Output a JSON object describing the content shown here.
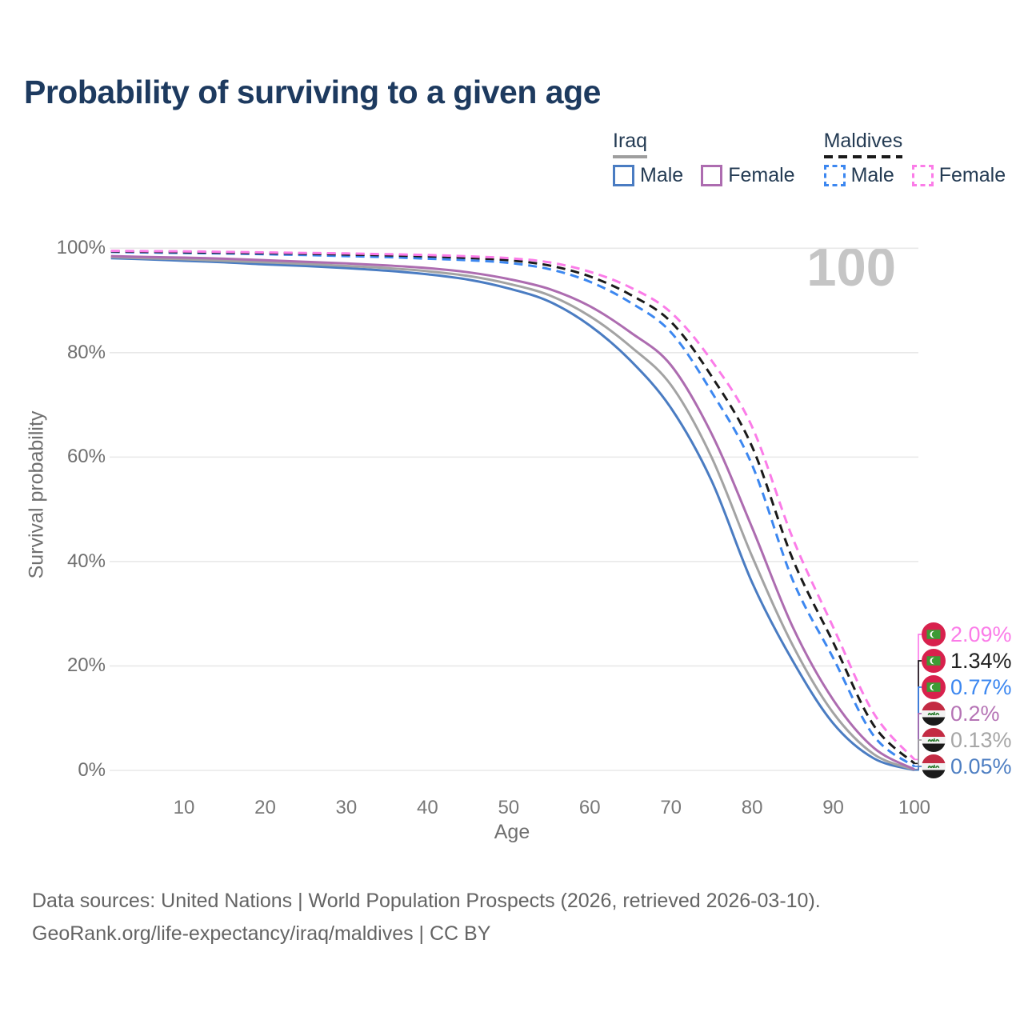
{
  "title": "Probability of surviving to a given age",
  "watermark": "100",
  "legend": {
    "groups": [
      {
        "name": "Iraq",
        "line_style": "solid",
        "line_color": "#9e9e9e",
        "items": [
          {
            "label": "Male",
            "color": "#4a7cc2",
            "dashed": false
          },
          {
            "label": "Female",
            "color": "#ad6cb0",
            "dashed": false
          }
        ]
      },
      {
        "name": "Maldives",
        "line_style": "dashed",
        "line_color": "#1a1a1a",
        "items": [
          {
            "label": "Male",
            "color": "#3c87f0",
            "dashed": true
          },
          {
            "label": "Female",
            "color": "#fb7ce8",
            "dashed": true
          }
        ]
      }
    ]
  },
  "axes": {
    "x": {
      "label": "Age",
      "ticks": [
        10,
        20,
        30,
        40,
        50,
        60,
        70,
        80,
        90,
        100
      ],
      "range": [
        0,
        100
      ]
    },
    "y": {
      "label": "Survival probability",
      "ticks": [
        "0%",
        "20%",
        "40%",
        "60%",
        "80%",
        "100%"
      ],
      "tick_values": [
        0,
        20,
        40,
        60,
        80,
        100
      ],
      "range": [
        0,
        100
      ]
    }
  },
  "chart_data": {
    "type": "line",
    "title": "Probability of surviving to a given age",
    "xlabel": "Age",
    "ylabel": "Survival probability",
    "xlim": [
      0,
      100
    ],
    "ylim": [
      0,
      100
    ],
    "grid": "horizontal",
    "legend_position": "top-right",
    "x": [
      1,
      5,
      10,
      15,
      20,
      25,
      30,
      35,
      40,
      45,
      50,
      55,
      60,
      65,
      70,
      75,
      80,
      85,
      90,
      95,
      100
    ],
    "series": [
      {
        "name": "Iraq Male",
        "country": "Iraq",
        "sex": "male",
        "flag": "iraq",
        "color": "#4a7cc2",
        "dashed": false,
        "end_label": "0.05%",
        "values": [
          98.1,
          97.9,
          97.6,
          97.3,
          96.9,
          96.6,
          96.2,
          95.7,
          95.0,
          94.0,
          92.3,
          89.8,
          85.2,
          78.5,
          69.4,
          55.5,
          36.0,
          21.0,
          9.0,
          2.3,
          0.05
        ]
      },
      {
        "name": "Iraq",
        "country": "Iraq",
        "sex": "total",
        "flag": "iraq",
        "color": "#a3a3a3",
        "dashed": false,
        "end_label": "0.13%",
        "values": [
          98.3,
          98.1,
          97.9,
          97.6,
          97.3,
          97.0,
          96.6,
          96.2,
          95.6,
          94.7,
          93.2,
          91.0,
          87.0,
          81.2,
          73.8,
          60.0,
          41.0,
          24.0,
          11.0,
          3.1,
          0.13
        ]
      },
      {
        "name": "Iraq Female",
        "country": "Iraq",
        "sex": "female",
        "flag": "iraq",
        "color": "#ad6cb0",
        "dashed": false,
        "end_label": "0.2%",
        "values": [
          98.5,
          98.35,
          98.2,
          98.0,
          97.7,
          97.4,
          97.1,
          96.7,
          96.2,
          95.4,
          94.1,
          92.2,
          88.9,
          83.9,
          77.6,
          64.5,
          46.5,
          27.5,
          13.5,
          4.3,
          0.2
        ]
      },
      {
        "name": "Maldives Male",
        "country": "Maldives",
        "sex": "male",
        "flag": "maldives",
        "color": "#3c87f0",
        "dashed": true,
        "end_label": "0.77%",
        "values": [
          99.3,
          99.2,
          99.1,
          99.0,
          98.85,
          98.7,
          98.5,
          98.3,
          98.0,
          97.7,
          97.2,
          96.0,
          93.6,
          89.6,
          83.9,
          72.5,
          58.5,
          36.5,
          21.5,
          6.6,
          0.77
        ]
      },
      {
        "name": "Maldives",
        "country": "Maldives",
        "sex": "total",
        "flag": "maldives",
        "color": "#1a1a1a",
        "dashed": true,
        "end_label": "1.34%",
        "values": [
          99.4,
          99.33,
          99.25,
          99.15,
          99.05,
          98.95,
          98.8,
          98.65,
          98.45,
          98.15,
          97.7,
          96.7,
          94.6,
          91.1,
          85.9,
          75.5,
          62.0,
          40.5,
          24.5,
          8.6,
          1.34
        ]
      },
      {
        "name": "Maldives Female",
        "country": "Maldives",
        "sex": "female",
        "flag": "maldives",
        "color": "#fb7ce8",
        "dashed": true,
        "end_label": "2.09%",
        "values": [
          99.5,
          99.45,
          99.4,
          99.3,
          99.2,
          99.1,
          99.0,
          98.85,
          98.7,
          98.45,
          98.1,
          97.3,
          95.5,
          92.5,
          87.7,
          78.5,
          65.8,
          44.5,
          27.4,
          10.9,
          2.09
        ]
      }
    ]
  },
  "end_labels": [
    {
      "value": "2.09%",
      "flag": "maldives",
      "color": "#fb7ce8"
    },
    {
      "value": "1.34%",
      "flag": "maldives",
      "color": "#222222"
    },
    {
      "value": "0.77%",
      "flag": "maldives",
      "color": "#3c87f0"
    },
    {
      "value": "0.2%",
      "flag": "iraq",
      "color": "#b573b5"
    },
    {
      "value": "0.13%",
      "flag": "iraq",
      "color": "#a6a6a6"
    },
    {
      "value": "0.05%",
      "flag": "iraq",
      "color": "#4d7ec2"
    }
  ],
  "footer": {
    "line1": "Data sources: United Nations | World Population Prospects (2026, retrieved 2026-03-10).",
    "line2": "GeoRank.org/life-expectancy/iraq/maldives | CC BY"
  }
}
